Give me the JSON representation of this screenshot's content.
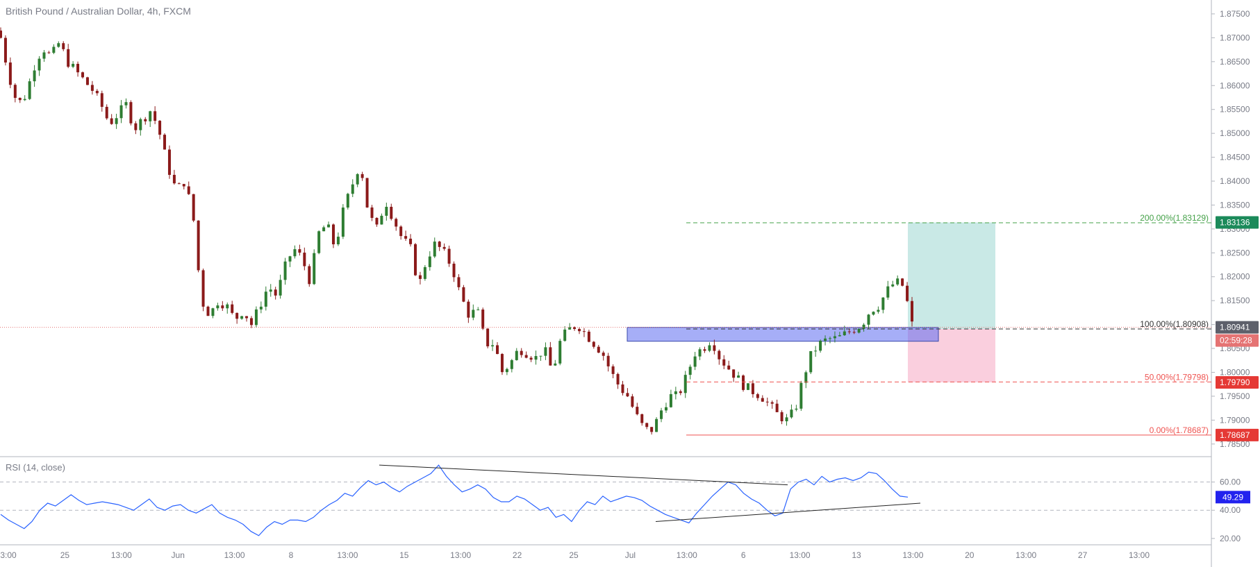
{
  "header": {
    "symbol_title": "British Pound / Australian Dollar, 4h, FXCM"
  },
  "rsi": {
    "title": "RSI (14, close)"
  },
  "colors": {
    "up": "#26a69a",
    "up_body": "#2e7d32",
    "down": "#8b1a1a",
    "rsi_line": "#2962ff",
    "zone": "#5c6bf0",
    "target_zone": "#b2dfdb",
    "stop_zone": "#f8bbd0",
    "green_level": "#43a047",
    "red_level": "#ef5350",
    "price_line": "#e57373"
  },
  "chart_data": [
    {
      "type": "candlestick",
      "x_ticks": [
        "3:00",
        "25",
        "13:00",
        "Jun",
        "13:00",
        "8",
        "13:00",
        "15",
        "13:00",
        "22",
        "25",
        "Jul",
        "13:00",
        "6",
        "13:00",
        "13",
        "13:00",
        "20",
        "13:00",
        "27",
        "13:00"
      ],
      "y_ticks": [
        "1.87500",
        "1.87000",
        "1.86500",
        "1.86000",
        "1.85500",
        "1.85000",
        "1.84500",
        "1.84000",
        "1.83500",
        "1.83000",
        "1.82500",
        "1.82000",
        "1.81500",
        "1.81000",
        "1.80500",
        "1.80000",
        "1.79500",
        "1.79000",
        "1.78500"
      ],
      "ylim": [
        1.7825,
        1.8779
      ],
      "close_path": [
        1.87,
        1.862,
        1.856,
        1.858,
        1.864,
        1.868,
        1.866,
        1.869,
        1.865,
        1.863,
        1.861,
        1.859,
        1.856,
        1.852,
        1.854,
        1.856,
        1.851,
        1.853,
        1.855,
        1.85,
        1.843,
        1.838,
        1.84,
        1.833,
        1.815,
        1.812,
        1.815,
        1.814,
        1.811,
        1.813,
        1.81,
        1.814,
        1.818,
        1.816,
        1.822,
        1.826,
        1.824,
        1.819,
        1.829,
        1.831,
        1.826,
        1.834,
        1.839,
        1.844,
        1.833,
        1.83,
        1.836,
        1.832,
        1.828,
        1.826,
        1.818,
        1.824,
        1.827,
        1.825,
        1.822,
        1.816,
        1.812,
        1.813,
        1.806,
        1.806,
        1.8,
        1.802,
        1.805,
        1.804,
        1.803,
        1.805,
        1.8,
        1.807,
        1.809,
        1.81,
        1.808,
        1.806,
        1.804,
        1.8,
        1.797,
        1.795,
        1.791,
        1.788,
        1.788,
        1.792,
        1.795,
        1.795,
        1.799,
        1.804,
        1.805,
        1.807,
        1.803,
        1.801,
        1.799,
        1.797,
        1.796,
        1.795,
        1.793,
        1.791,
        1.79,
        1.792,
        1.799,
        1.804,
        1.806,
        1.807,
        1.807,
        1.808,
        1.809,
        1.81,
        1.813,
        1.814,
        1.817,
        1.819,
        1.818,
        1.81
      ],
      "candle_count": 190,
      "series": [
        {
          "name": "GBPAUD",
          "type": "candlestick"
        }
      ],
      "price_labels": {
        "target": "1.83136",
        "current": "1.80941",
        "countdown": "02:59:28",
        "stop": "1.79790",
        "low": "1.78687"
      },
      "fib_levels": [
        {
          "label": "200.00%(1.83129)",
          "value": 1.83129,
          "color": "green"
        },
        {
          "label": "100.00%(1.80908)",
          "value": 1.80908,
          "color": "black"
        },
        {
          "label": "50.00%(1.79798)",
          "value": 1.79798,
          "color": "red"
        },
        {
          "label": "0.00%(1.78687)",
          "value": 1.78687,
          "color": "red"
        }
      ],
      "zones": [
        {
          "name": "support-resistance-zone",
          "from": 1.8065,
          "to": 1.8094
        },
        {
          "name": "long-position-target",
          "from": 1.80908,
          "to": 1.83136
        },
        {
          "name": "long-position-stop",
          "from": 1.7979,
          "to": 1.80908
        }
      ]
    },
    {
      "type": "line",
      "title": "RSI (14, close)",
      "y_ticks": [
        "60.00",
        "40.00",
        "20.00"
      ],
      "ylim": [
        16,
        77
      ],
      "current_label": "49.29",
      "values": [
        37,
        33,
        30,
        27,
        32,
        40,
        45,
        43,
        47,
        51,
        47,
        44,
        45,
        46,
        45,
        44,
        42,
        40,
        44,
        48,
        42,
        40,
        43,
        44,
        40,
        38,
        41,
        44,
        38,
        35,
        33,
        30,
        25,
        22,
        28,
        32,
        30,
        33,
        33,
        32,
        35,
        40,
        44,
        47,
        52,
        50,
        56,
        61,
        58,
        60,
        56,
        53,
        57,
        60,
        63,
        66,
        72,
        64,
        58,
        53,
        55,
        58,
        55,
        49,
        46,
        46,
        50,
        48,
        44,
        40,
        42,
        35,
        37,
        32,
        40,
        46,
        44,
        50,
        46,
        48,
        50,
        49,
        47,
        43,
        40,
        37,
        35,
        33,
        31,
        38,
        44,
        50,
        55,
        60,
        58,
        52,
        48,
        45,
        40,
        36,
        38,
        55,
        60,
        62,
        58,
        64,
        60,
        62,
        63,
        61,
        63,
        67,
        66,
        61,
        55,
        50,
        49.29
      ]
    }
  ]
}
